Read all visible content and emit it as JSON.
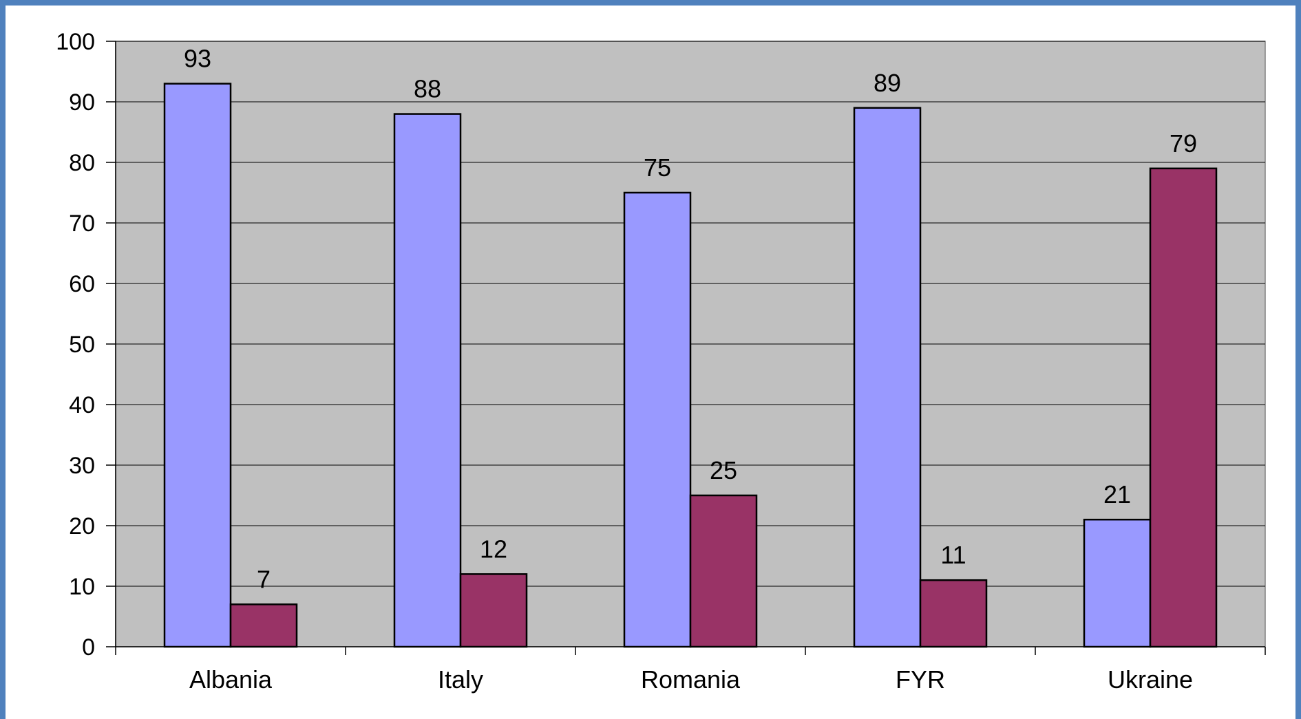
{
  "chart_data": {
    "type": "bar",
    "categories": [
      "Albania",
      "Italy",
      "Romania",
      "FYR",
      "Ukraine"
    ],
    "series": [
      {
        "values": [
          93,
          88,
          75,
          89,
          21
        ],
        "color": "#9999ff"
      },
      {
        "values": [
          7,
          12,
          25,
          11,
          79
        ],
        "color": "#993366"
      }
    ],
    "data_labels": [
      [
        "93",
        "88",
        "75",
        "89",
        "21"
      ],
      [
        "7",
        "12",
        "25",
        "11",
        "79"
      ]
    ],
    "ylim": [
      0,
      100
    ],
    "yticks": [
      "0",
      "10",
      "20",
      "30",
      "40",
      "50",
      "60",
      "70",
      "80",
      "90",
      "100"
    ],
    "grid": true,
    "legend": "none",
    "plot_background": "#c0c0c0"
  }
}
